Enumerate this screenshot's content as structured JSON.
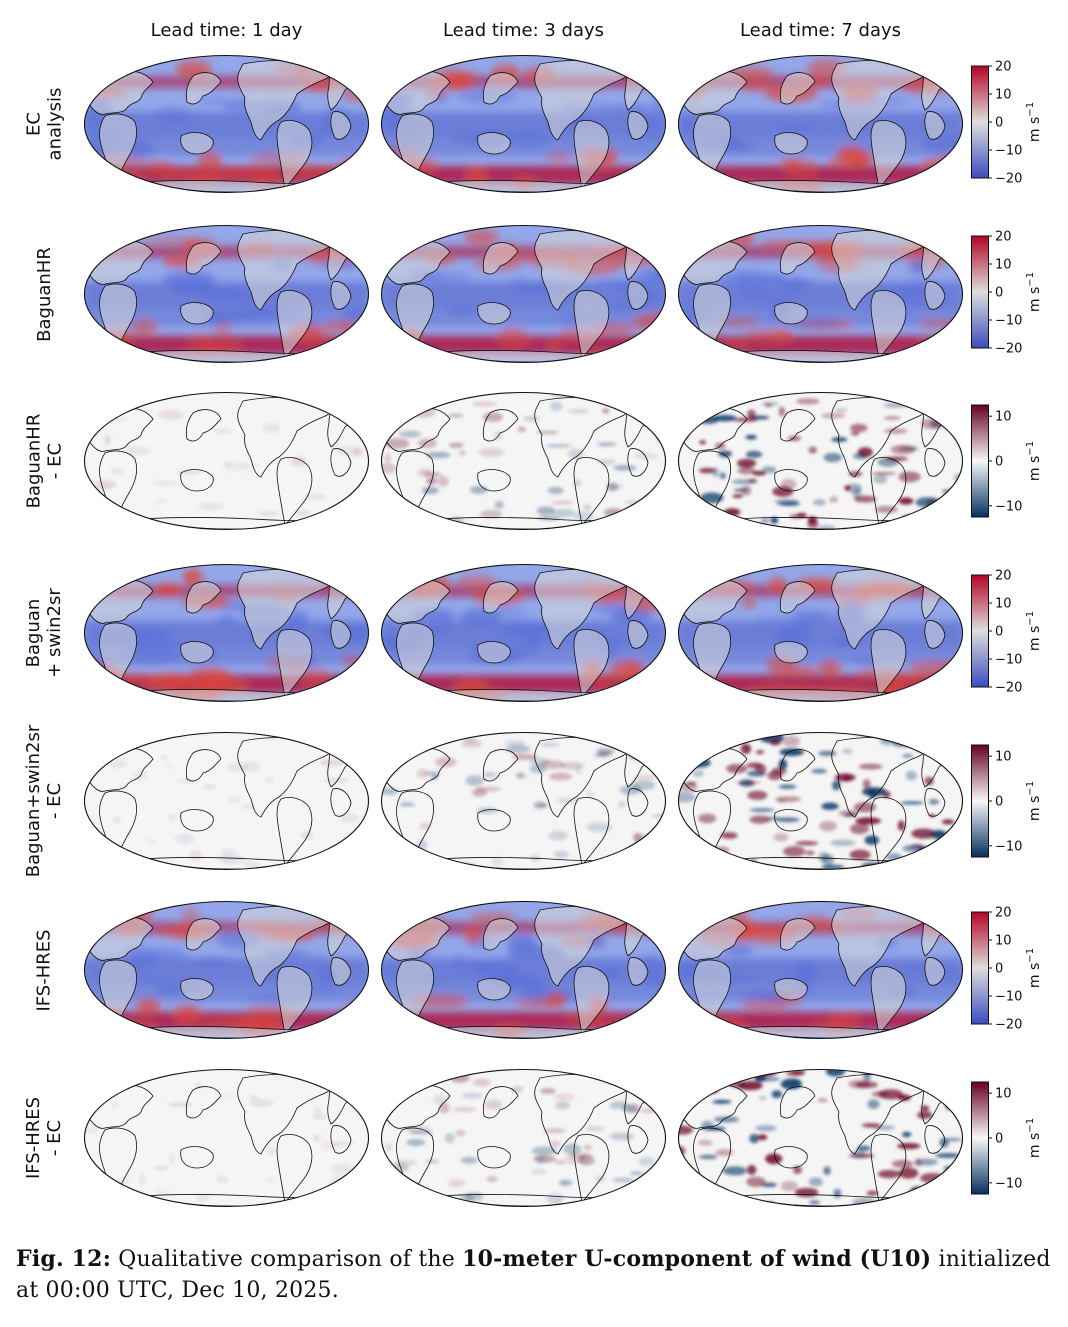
{
  "columns": [
    "Lead time: 1 day",
    "Lead time: 3 days",
    "Lead time: 7 days"
  ],
  "rows": [
    {
      "label": "EC\nanalysis",
      "kind": "field"
    },
    {
      "label": "BaguanHR",
      "kind": "field"
    },
    {
      "label": "BaguanHR\n- EC",
      "kind": "diff"
    },
    {
      "label": "Baguan\n+ swin2sr",
      "kind": "field"
    },
    {
      "label": "Baguan+swin2sr\n- EC",
      "kind": "diff"
    },
    {
      "label": "IFS-HRES",
      "kind": "field"
    },
    {
      "label": "IFS-HRES\n- EC",
      "kind": "diff"
    }
  ],
  "colorbars": {
    "field": {
      "ticks": [
        20,
        10,
        0,
        -10,
        -20
      ],
      "tick_labels": [
        "20",
        "10",
        "0",
        "−10",
        "−20"
      ],
      "range": [
        -20,
        20
      ],
      "colors": [
        "#3b4cc0",
        "#dddddd",
        "#b40426"
      ]
    },
    "diff": {
      "ticks": [
        10,
        0,
        -10
      ],
      "tick_labels": [
        "10",
        "0",
        "−10"
      ],
      "range": [
        -12.5,
        12.5
      ],
      "colors": [
        "#053061",
        "#f7f7f7",
        "#67001f"
      ]
    },
    "unit_main": "m s",
    "unit_exp": "−1"
  },
  "caption": {
    "label": "Fig. 12:",
    "text_before": " Qualitative comparison of the ",
    "bold": "10-meter U-component of wind (U10)",
    "text_after": " initialized at 00:00 UTC, Dec 10, 2025."
  }
}
